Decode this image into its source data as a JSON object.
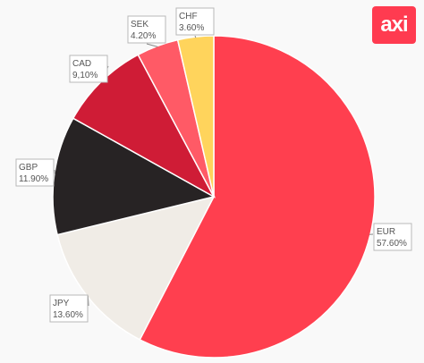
{
  "chart_data": {
    "type": "pie",
    "categories": [
      "EUR",
      "JPY",
      "GBP",
      "CAD",
      "SEK",
      "CHF"
    ],
    "values": [
      57.6,
      13.6,
      11.9,
      9.1,
      4.2,
      3.6
    ],
    "labels": [
      "57.60%",
      "13.60%",
      "11.90%",
      "9,10%",
      "4.20%",
      "3.60%"
    ],
    "colors": [
      "#ff3f4f",
      "#f0ece6",
      "#272324",
      "#cf1c36",
      "#ff5a66",
      "#ffd45c"
    ],
    "start": "12 o'clock",
    "direction": "clockwise",
    "legend": "none",
    "title": ""
  },
  "brand": {
    "logo_text": "axi",
    "logo_color": "#ff3b50"
  }
}
